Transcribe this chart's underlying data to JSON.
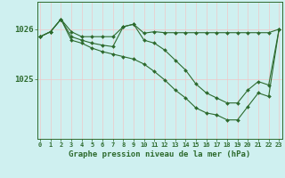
{
  "xlabel": "Graphe pression niveau de la mer (hPa)",
  "x": [
    0,
    1,
    2,
    3,
    4,
    5,
    6,
    7,
    8,
    9,
    10,
    11,
    12,
    13,
    14,
    15,
    16,
    17,
    18,
    19,
    20,
    21,
    22,
    23
  ],
  "series1": [
    1025.85,
    1025.95,
    1026.2,
    1025.95,
    1025.85,
    1025.85,
    1025.85,
    1025.85,
    1026.05,
    1026.1,
    1025.92,
    1025.95,
    1025.93,
    1025.93,
    1025.93,
    1025.93,
    1025.93,
    1025.93,
    1025.93,
    1025.93,
    1025.93,
    1025.93,
    1025.93,
    1026.0
  ],
  "series2": [
    1025.85,
    1025.95,
    1026.2,
    1025.85,
    1025.78,
    1025.72,
    1025.68,
    1025.65,
    1026.05,
    1026.1,
    1025.78,
    1025.72,
    1025.58,
    1025.38,
    1025.18,
    1024.9,
    1024.72,
    1024.62,
    1024.52,
    1024.52,
    1024.78,
    1024.95,
    1024.88,
    1026.0
  ],
  "series3": [
    1025.85,
    1025.95,
    1026.2,
    1025.78,
    1025.72,
    1025.62,
    1025.55,
    1025.5,
    1025.45,
    1025.4,
    1025.3,
    1025.15,
    1024.98,
    1024.78,
    1024.62,
    1024.42,
    1024.32,
    1024.28,
    1024.18,
    1024.18,
    1024.45,
    1024.72,
    1024.65,
    1026.0
  ],
  "line_color": "#2d6a2d",
  "marker": "D",
  "markersize": 2.0,
  "linewidth": 0.8,
  "bg_color": "#cff0f0",
  "grid_color": "#f0c8c8",
  "yticks": [
    1025.0,
    1026.0
  ],
  "ytick_labels": [
    "1025",
    "1026"
  ],
  "ylim": [
    1023.8,
    1026.55
  ],
  "xlim": [
    -0.3,
    23.3
  ],
  "xlabel_fontsize": 6.5,
  "tick_fontsize": 5.0
}
